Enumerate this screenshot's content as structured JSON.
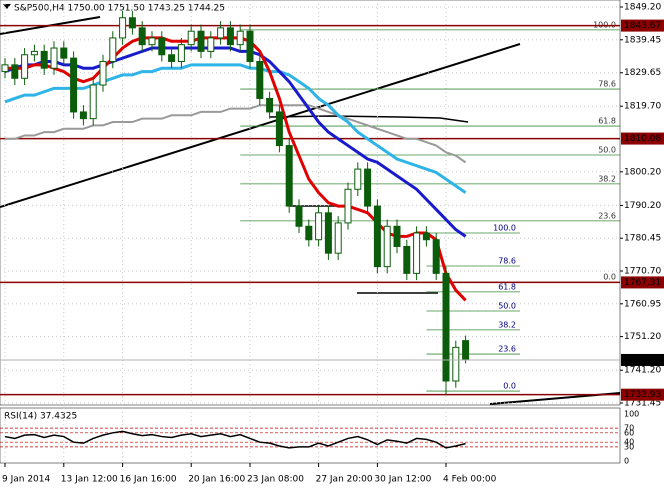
{
  "chart_data": {
    "type": "candlestick",
    "title": "S&P500,H4 1750.00 1751.50 1743.25 1744.25",
    "categories": [
      "9 Jan 2014",
      null,
      null,
      null,
      null,
      null,
      "13 Jan 12:00",
      null,
      null,
      null,
      null,
      null,
      "16 Jan 16:00",
      null,
      null,
      null,
      null,
      null,
      null,
      "20 Jan 16:00",
      null,
      null,
      null,
      null,
      null,
      "23 Jan 08:00",
      null,
      null,
      null,
      null,
      null,
      null,
      "27 Jan 20:00",
      null,
      null,
      null,
      null,
      null,
      "30 Jan 12:00",
      null,
      null,
      null,
      null,
      null,
      null,
      "4 Feb 00:00",
      null,
      null
    ],
    "open": [
      1830,
      1832,
      1828,
      1835,
      1836,
      1831,
      1837,
      1834,
      1818,
      1816,
      1826,
      1833,
      1840,
      1846,
      1843,
      1838,
      1840,
      1835,
      1833,
      1838,
      1842,
      1836,
      1840,
      1843,
      1838,
      1842,
      1833,
      1822,
      1818,
      1808,
      1790,
      1784,
      1780,
      1788,
      1776,
      1785,
      1795,
      1801,
      1790,
      1772,
      1784,
      1778,
      1770,
      1782,
      1780,
      1770,
      1738,
      1750
    ],
    "high": [
      1834,
      1834,
      1837,
      1838,
      1838,
      1839,
      1839,
      1836,
      1820,
      1828,
      1835,
      1842,
      1848,
      1848,
      1845,
      1842,
      1842,
      1837,
      1840,
      1844,
      1844,
      1842,
      1845,
      1845,
      1844,
      1844,
      1835,
      1824,
      1820,
      1810,
      1792,
      1786,
      1790,
      1790,
      1787,
      1797,
      1803,
      1803,
      1792,
      1786,
      1786,
      1780,
      1784,
      1784,
      1782,
      1772,
      1750,
      1751.5
    ],
    "low": [
      1828,
      1826,
      1826,
      1833,
      1829,
      1829,
      1832,
      1816,
      1814,
      1814,
      1824,
      1831,
      1838,
      1841,
      1836,
      1836,
      1833,
      1831,
      1831,
      1836,
      1834,
      1834,
      1838,
      1836,
      1836,
      1831,
      1820,
      1816,
      1806,
      1788,
      1782,
      1778,
      1778,
      1774,
      1774,
      1783,
      1793,
      1788,
      1770,
      1770,
      1776,
      1768,
      1768,
      1778,
      1768,
      1734,
      1736,
      1743.25
    ],
    "close": [
      1832,
      1828,
      1835,
      1836,
      1831,
      1837,
      1834,
      1818,
      1816,
      1826,
      1833,
      1840,
      1846,
      1843,
      1838,
      1840,
      1835,
      1833,
      1838,
      1842,
      1836,
      1840,
      1843,
      1838,
      1842,
      1833,
      1822,
      1818,
      1808,
      1790,
      1784,
      1780,
      1788,
      1776,
      1785,
      1795,
      1801,
      1790,
      1772,
      1784,
      1778,
      1770,
      1782,
      1780,
      1770,
      1738,
      1748,
      1744.25
    ],
    "candle_color": "#0b5d0b",
    "series": [
      {
        "color": "#9a9a9a",
        "values": [
          1810,
          1810,
          1811,
          1811,
          1812,
          1812,
          1813,
          1813,
          1813,
          1814,
          1814,
          1815,
          1815,
          1815,
          1816,
          1816,
          1816,
          1817,
          1817,
          1817,
          1818,
          1818,
          1818,
          1819,
          1819,
          1819,
          1820,
          1820,
          1820,
          1820,
          1820,
          1820,
          1819,
          1818,
          1817,
          1816,
          1815,
          1814,
          1813,
          1812,
          1811,
          1810,
          1810,
          1809,
          1808,
          1806,
          1805,
          1803
        ]
      },
      {
        "color": "#2eb4e6",
        "values": [
          1821,
          1822,
          1823,
          1823,
          1824,
          1825,
          1825,
          1825,
          1825,
          1826,
          1827,
          1828,
          1829,
          1829,
          1830,
          1830,
          1831,
          1831,
          1831,
          1832,
          1832,
          1832,
          1832,
          1832,
          1832,
          1831,
          1831,
          1830,
          1830,
          1829,
          1827,
          1825,
          1822,
          1820,
          1817,
          1815,
          1812,
          1810,
          1808,
          1806,
          1804,
          1803,
          1802,
          1801,
          1800,
          1798,
          1796,
          1794
        ]
      },
      {
        "color": "#1a1acd",
        "values": [
          1830,
          1831,
          1832,
          1832,
          1833,
          1833,
          1832,
          1832,
          1831,
          1831,
          1832,
          1833,
          1834,
          1835,
          1836,
          1837,
          1837,
          1837,
          1837,
          1837,
          1837,
          1837,
          1837,
          1837,
          1836,
          1836,
          1835,
          1833,
          1830,
          1827,
          1823,
          1819,
          1815,
          1812,
          1810,
          1808,
          1806,
          1804,
          1803,
          1801,
          1799,
          1797,
          1795,
          1792,
          1789,
          1786,
          1783,
          1781
        ]
      },
      {
        "color": "#e00000",
        "values": [
          1831,
          1831,
          1831,
          1832,
          1832,
          1831,
          1830,
          1828,
          1827,
          1828,
          1831,
          1834,
          1837,
          1839,
          1840,
          1840,
          1840,
          1839,
          1839,
          1839,
          1840,
          1840,
          1840,
          1840,
          1840,
          1839,
          1836,
          1830,
          1822,
          1812,
          1805,
          1798,
          1794,
          1791,
          1790,
          1790,
          1789,
          1788,
          1785,
          1782,
          1781,
          1781,
          1782,
          1782,
          1780,
          1770,
          1765,
          1762
        ]
      }
    ],
    "ylim": [
      1730.86,
      1851.28
    ],
    "yticks": [
      {
        "value": 1849.2,
        "label": "1849.20"
      },
      {
        "value": 1839.45,
        "label": "1839.45"
      },
      {
        "value": 1829.65,
        "label": "1829.65"
      },
      {
        "value": 1819.7,
        "label": "1819.70"
      },
      {
        "value": 1800.2,
        "label": "1800.20"
      },
      {
        "value": 1790.2,
        "label": "1790.20"
      },
      {
        "value": 1780.45,
        "label": "1780.45"
      },
      {
        "value": 1770.7,
        "label": "1770.70"
      },
      {
        "value": 1760.95,
        "label": "1760.95"
      },
      {
        "value": 1751.2,
        "label": "1751.20"
      },
      {
        "value": 1741.2,
        "label": "1741.20"
      },
      {
        "value": 1731.45,
        "label": "1731.45"
      }
    ],
    "levels": [
      {
        "value": 1843.67,
        "label": "1843.67"
      },
      {
        "value": 1810.08,
        "label": "1810.08"
      },
      {
        "value": 1767.31,
        "label": "1767.31"
      },
      {
        "value": 1733.93,
        "label": "1733.93"
      }
    ],
    "level_color": "#8b0000",
    "current": {
      "value": 1744.25,
      "label": "1744.25"
    },
    "fibs": [
      {
        "start": 24,
        "levels": [
          {
            "value": 1842.4,
            "label": "100.0"
          },
          {
            "value": 1824.8,
            "label": "78.6"
          },
          {
            "value": 1813.8,
            "label": "61.8"
          },
          {
            "value": 1805.2,
            "label": "50.0"
          },
          {
            "value": 1796.6,
            "label": "38.2"
          },
          {
            "value": 1785.6,
            "label": "23.6"
          },
          {
            "value": 1767.4,
            "label": "0.0"
          }
        ]
      },
      {
        "start": 43,
        "levels": [
          {
            "value": 1782.0,
            "label": "100.0"
          },
          {
            "value": 1772.2,
            "label": "78.6"
          },
          {
            "value": 1764.5,
            "label": "61.8"
          },
          {
            "value": 1758.8,
            "label": "50.0"
          },
          {
            "value": 1753.2,
            "label": "38.2"
          },
          {
            "value": 1746.0,
            "label": "23.6"
          },
          {
            "value": 1735.0,
            "label": "0.0"
          }
        ]
      }
    ],
    "rsi": {
      "title": "RSI(14) 37.4325",
      "color": "#000000",
      "values": [
        52,
        48,
        55,
        56,
        50,
        55,
        52,
        40,
        38,
        48,
        55,
        60,
        63,
        58,
        54,
        56,
        52,
        50,
        55,
        58,
        52,
        55,
        58,
        52,
        56,
        48,
        40,
        38,
        32,
        28,
        30,
        30,
        38,
        32,
        40,
        48,
        52,
        45,
        35,
        45,
        42,
        38,
        48,
        46,
        40,
        28,
        32,
        37
      ],
      "ylim": [
        0,
        100
      ],
      "yticks": [
        0,
        30,
        40,
        60,
        70,
        100
      ]
    }
  }
}
